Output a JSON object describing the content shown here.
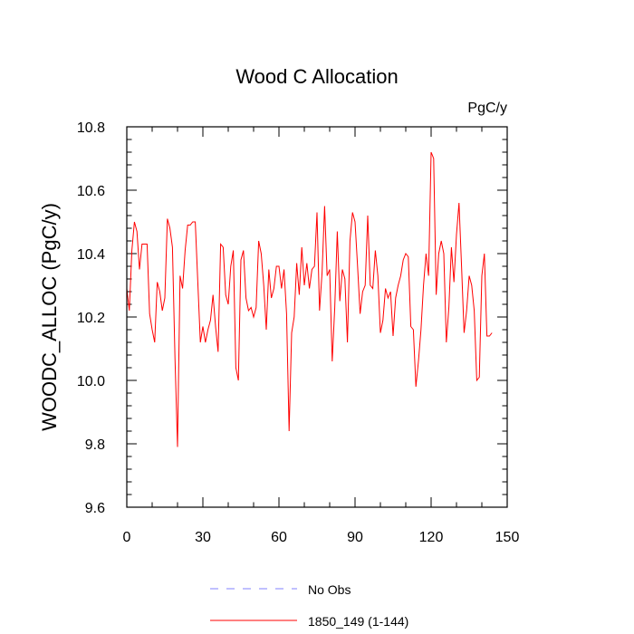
{
  "chart_data": {
    "type": "line",
    "title": "Wood C Allocation",
    "units_label": "PgC/y",
    "ylabel": "WOODC_ALLOC  (PgC/y)",
    "xlabel": "",
    "xlim": [
      0,
      150
    ],
    "ylim": [
      9.6,
      10.8
    ],
    "x_ticks": [
      0,
      30,
      60,
      90,
      120,
      150
    ],
    "x_tick_labels": [
      "0",
      "30",
      "60",
      "90",
      "120",
      "150"
    ],
    "y_ticks": [
      9.6,
      9.8,
      10.0,
      10.2,
      10.4,
      10.6,
      10.8
    ],
    "y_tick_labels": [
      "9.6",
      "9.8",
      "10.0",
      "10.2",
      "10.4",
      "10.6",
      "10.8"
    ],
    "grid": false,
    "legend_position": "bottom-center",
    "legend": [
      {
        "label": "No Obs",
        "color": "#8080ff",
        "style": "dashed"
      },
      {
        "label": "1850_149 (1-144)",
        "color": "#ff0000",
        "style": "solid"
      }
    ],
    "series": [
      {
        "name": "1850_149 (1-144)",
        "color": "#ff0000",
        "x": [
          0,
          1,
          2,
          3,
          4,
          5,
          6,
          7,
          8,
          9,
          10,
          11,
          12,
          13,
          14,
          15,
          16,
          17,
          18,
          19,
          20,
          21,
          22,
          23,
          24,
          25,
          26,
          27,
          28,
          29,
          30,
          31,
          32,
          33,
          34,
          35,
          36,
          37,
          38,
          39,
          40,
          41,
          42,
          43,
          44,
          45,
          46,
          47,
          48,
          49,
          50,
          51,
          52,
          53,
          54,
          55,
          56,
          57,
          58,
          59,
          60,
          61,
          62,
          63,
          64,
          65,
          66,
          67,
          68,
          69,
          70,
          71,
          72,
          73,
          74,
          75,
          76,
          77,
          78,
          79,
          80,
          81,
          82,
          83,
          84,
          85,
          86,
          87,
          88,
          89,
          90,
          91,
          92,
          93,
          94,
          95,
          96,
          97,
          98,
          99,
          100,
          101,
          102,
          103,
          104,
          105,
          106,
          107,
          108,
          109,
          110,
          111,
          112,
          113,
          114,
          115,
          116,
          117,
          118,
          119,
          120,
          121,
          122,
          123,
          124,
          125,
          126,
          127,
          128,
          129,
          130,
          131,
          132,
          133,
          134,
          135,
          136,
          137,
          138,
          139,
          140,
          141,
          142,
          143,
          144
        ],
        "values": [
          10.29,
          10.22,
          10.41,
          10.5,
          10.47,
          10.35,
          10.43,
          10.43,
          10.43,
          10.21,
          10.16,
          10.12,
          10.31,
          10.28,
          10.22,
          10.26,
          10.51,
          10.48,
          10.42,
          10.07,
          9.79,
          10.33,
          10.29,
          10.41,
          10.49,
          10.49,
          10.5,
          10.5,
          10.31,
          10.12,
          10.17,
          10.12,
          10.16,
          10.19,
          10.27,
          10.17,
          10.09,
          10.43,
          10.42,
          10.27,
          10.24,
          10.36,
          10.41,
          10.04,
          10.0,
          10.38,
          10.41,
          10.26,
          10.22,
          10.23,
          10.2,
          10.23,
          10.44,
          10.4,
          10.3,
          10.16,
          10.35,
          10.26,
          10.29,
          10.36,
          10.36,
          10.29,
          10.35,
          10.21,
          9.84,
          10.15,
          10.2,
          10.37,
          10.27,
          10.42,
          10.3,
          10.37,
          10.29,
          10.35,
          10.36,
          10.53,
          10.22,
          10.34,
          10.55,
          10.33,
          10.35,
          10.06,
          10.23,
          10.47,
          10.25,
          10.35,
          10.32,
          10.12,
          10.44,
          10.53,
          10.5,
          10.36,
          10.21,
          10.28,
          10.3,
          10.52,
          10.3,
          10.29,
          10.41,
          10.33,
          10.15,
          10.19,
          10.29,
          10.26,
          10.28,
          10.14,
          10.26,
          10.3,
          10.33,
          10.38,
          10.4,
          10.39,
          10.17,
          10.16,
          9.98,
          10.06,
          10.16,
          10.3,
          10.4,
          10.33,
          10.72,
          10.7,
          10.27,
          10.4,
          10.44,
          10.4,
          10.12,
          10.23,
          10.42,
          10.31,
          10.46,
          10.56,
          10.36,
          10.15,
          10.22,
          10.33,
          10.3,
          10.22,
          10.0,
          10.01,
          10.33,
          10.4,
          10.14,
          10.14,
          10.15
        ]
      }
    ]
  }
}
